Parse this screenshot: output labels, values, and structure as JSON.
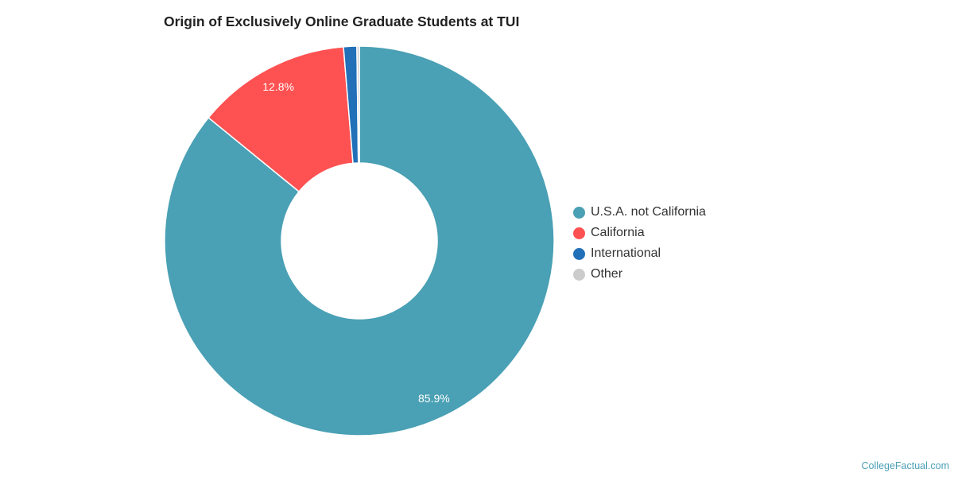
{
  "chart_data": {
    "type": "pie",
    "title": "Origin of Exclusively Online Graduate Students at TUI",
    "categories": [
      "U.S.A. not California",
      "California",
      "International",
      "Other"
    ],
    "values": [
      85.9,
      12.8,
      1.1,
      0.2
    ],
    "value_labels": [
      "85.9%",
      "12.8%",
      "",
      ""
    ],
    "colors": [
      "#4aa0b4",
      "#fe5151",
      "#2170b8",
      "#cccccc"
    ],
    "donut": true,
    "legend_position": "right"
  },
  "legend": {
    "items": [
      {
        "label": "U.S.A. not California",
        "color": "#4aa0b4"
      },
      {
        "label": "California",
        "color": "#fe5151"
      },
      {
        "label": "International",
        "color": "#2170b8"
      },
      {
        "label": "Other",
        "color": "#cccccc"
      }
    ]
  },
  "footer": {
    "credit": "CollegeFactual.com"
  }
}
